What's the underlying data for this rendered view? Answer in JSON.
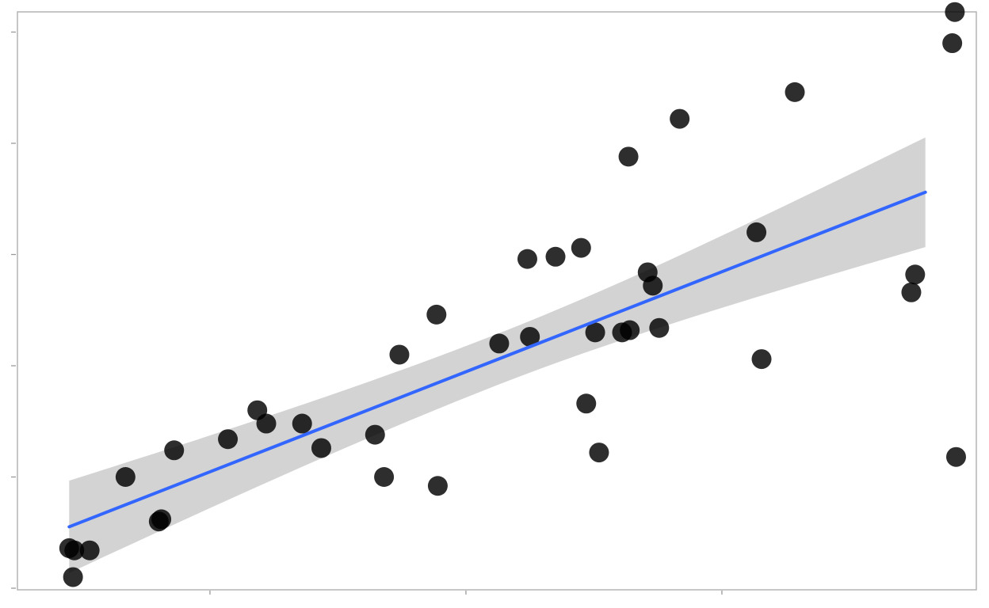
{
  "chart_data": {
    "type": "scatter",
    "title": "",
    "xlabel": "",
    "ylabel": "",
    "grid": false,
    "legend": "none",
    "xlim": [
      0,
      35
    ],
    "ylim": [
      0,
      26
    ],
    "x_ticks": [
      7.5,
      17.5,
      27.5
    ],
    "y_ticks": [
      0,
      5,
      10,
      15,
      20,
      25
    ],
    "points": {
      "color": "#000000",
      "x": [
        2,
        2.2,
        2.15,
        2.8,
        4.2,
        5.5,
        5.6,
        6.1,
        8.2,
        9.35,
        9.7,
        11.1,
        11.85,
        13.95,
        14.3,
        14.9,
        16.35,
        16.4,
        18.8,
        19.9,
        20.0,
        21.0,
        22.0,
        22.2,
        22.55,
        22.7,
        23.6,
        23.85,
        23.9,
        24.6,
        24.8,
        25.05,
        25.85,
        28.85,
        29.05,
        30.35,
        34.9,
        35.05,
        36.5,
        36.6,
        36.65
      ],
      "y": [
        1.8,
        1.7,
        0.5,
        1.7,
        5.0,
        3.0,
        3.1,
        6.2,
        6.7,
        8.0,
        7.4,
        7.4,
        6.3,
        6.9,
        5.0,
        10.5,
        12.3,
        4.6,
        11.0,
        14.8,
        11.3,
        14.9,
        15.3,
        8.3,
        11.5,
        6.1,
        11.5,
        19.4,
        11.6,
        14.2,
        13.6,
        11.7,
        21.1,
        16.0,
        10.3,
        22.3,
        13.3,
        14.1,
        24.5,
        25.9,
        5.9
      ]
    },
    "fit": {
      "method": "linear",
      "color": "#3366ff",
      "band_color": "#d3d3d3",
      "x_start": 2.0,
      "x_end": 35.45,
      "y_start": 2.76,
      "y_end": 17.8,
      "ci_low_start": 0.87,
      "ci_high_start": 5.02,
      "ci_low_end": 15.35,
      "ci_high_end": 20.28
    }
  }
}
